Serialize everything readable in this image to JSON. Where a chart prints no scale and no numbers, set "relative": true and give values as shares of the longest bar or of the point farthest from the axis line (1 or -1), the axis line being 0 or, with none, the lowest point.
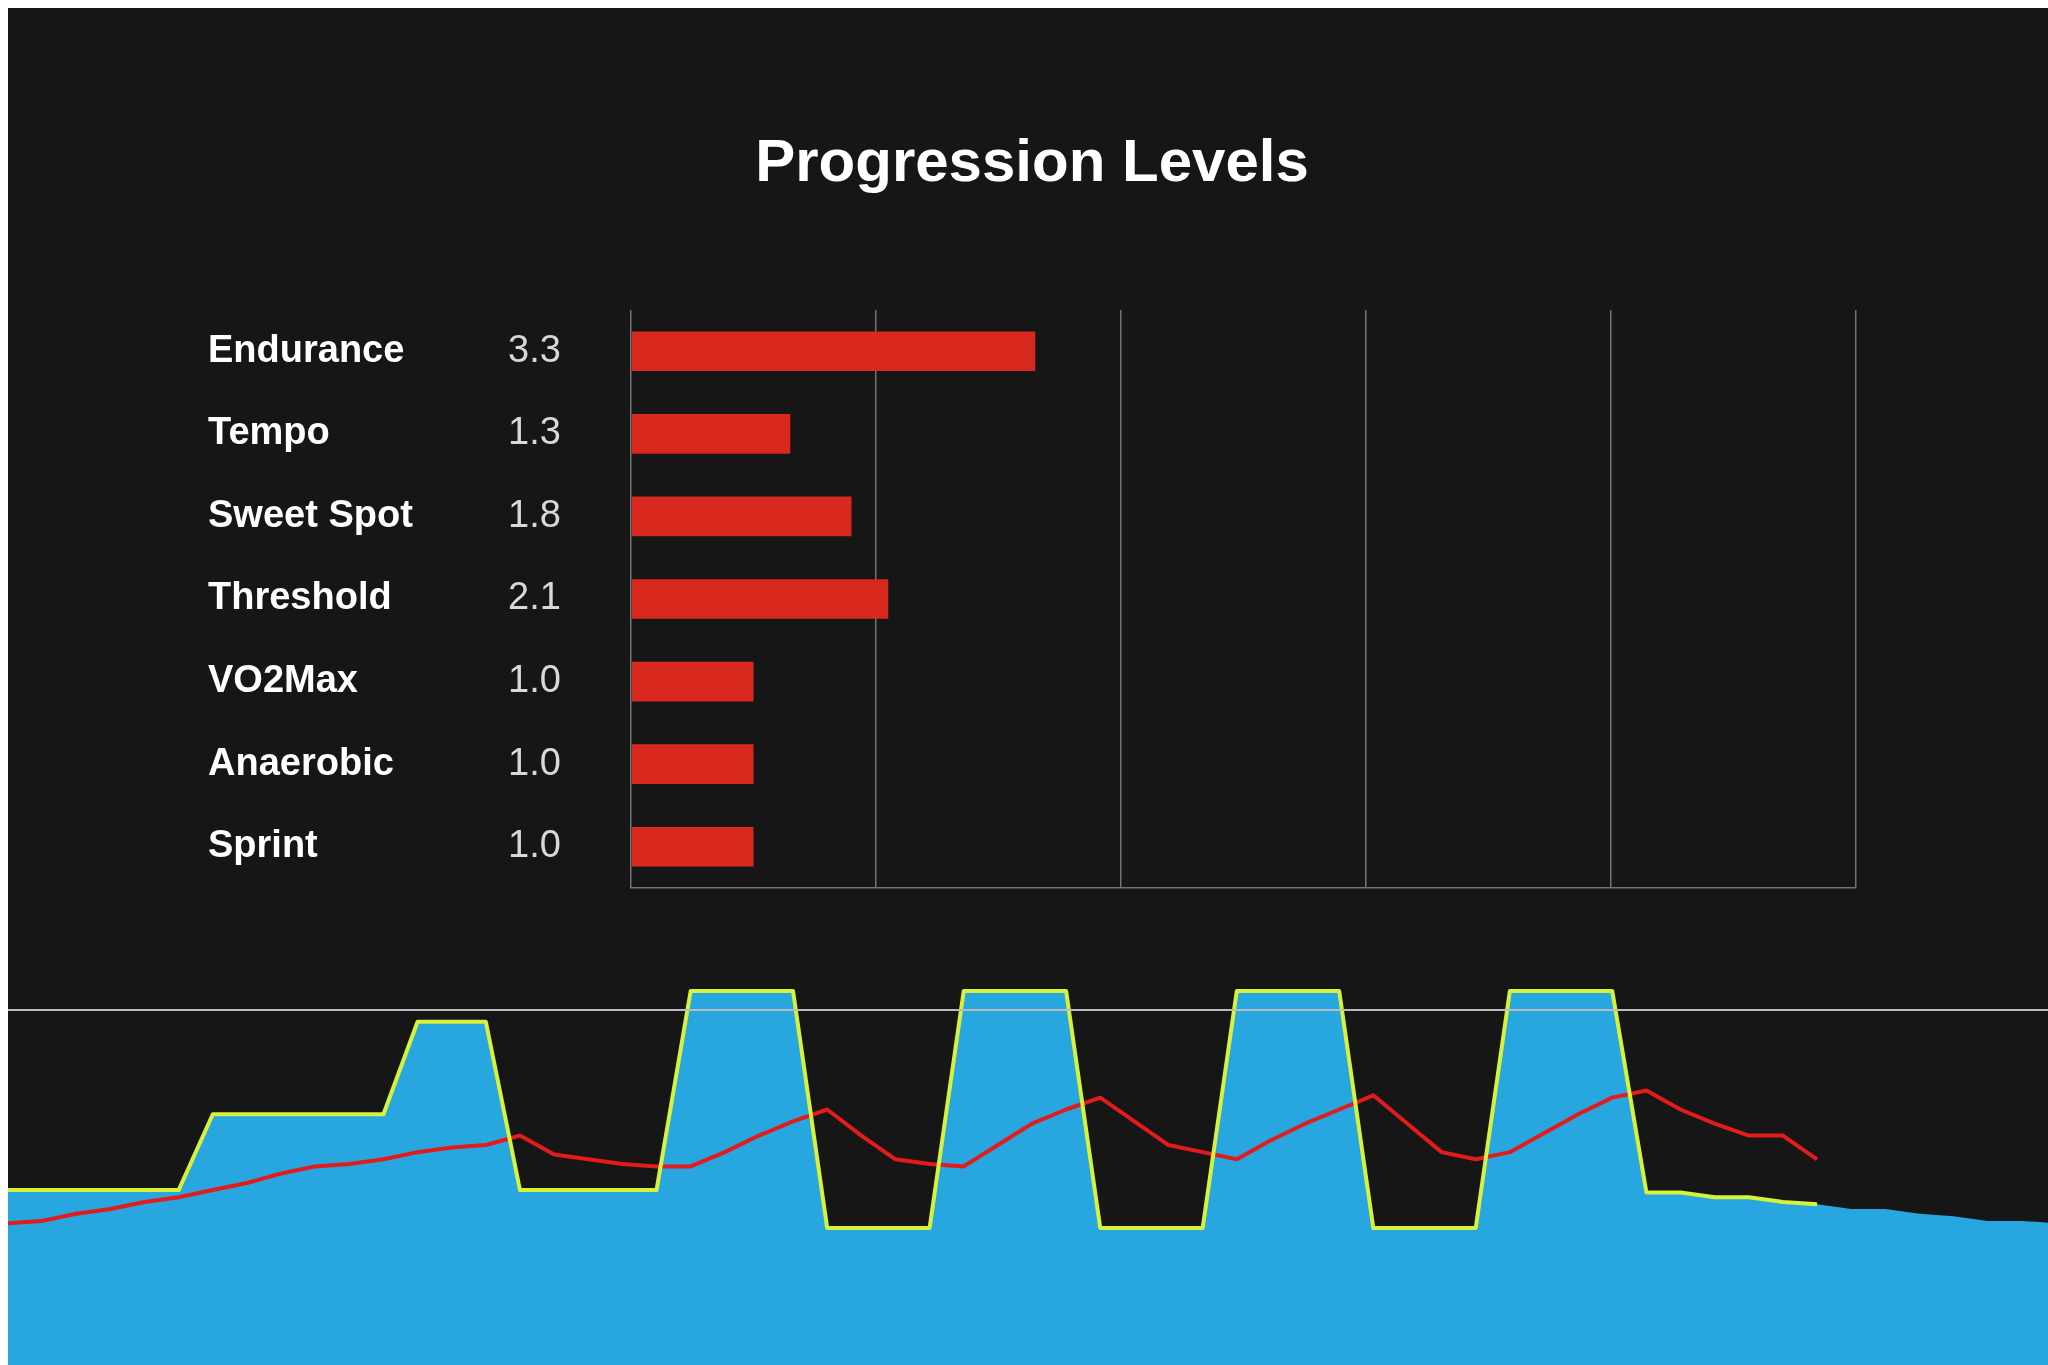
{
  "chart_data": [
    {
      "type": "bar",
      "orientation": "horizontal",
      "title": "Progression Levels",
      "categories": [
        "Endurance",
        "Tempo",
        "Sweet Spot",
        "Threshold",
        "VO2Max",
        "Anaerobic",
        "Sprint"
      ],
      "values": [
        3.3,
        1.3,
        1.8,
        2.1,
        1.0,
        1.0,
        1.0
      ],
      "value_labels": [
        "3.3",
        "1.3",
        "1.8",
        "2.1",
        "1.0",
        "1.0",
        "1.0"
      ],
      "color": "#d9291f",
      "xlim": [
        0,
        10
      ],
      "grid": "x",
      "tick_labels": "y",
      "legend": false
    },
    {
      "type": "area",
      "relative": true,
      "tick_labels": false,
      "legend": false,
      "categories": [
        null,
        null,
        null,
        null,
        null,
        null,
        null,
        null,
        null,
        null,
        null,
        null,
        null,
        null,
        null,
        null,
        null,
        null,
        null,
        null,
        null,
        null,
        null,
        null,
        null,
        null,
        null,
        null,
        null,
        null,
        null,
        null,
        null,
        null,
        null,
        null,
        null,
        null,
        null,
        null,
        null,
        null,
        null,
        null,
        null,
        null,
        null,
        null,
        null,
        null,
        null,
        null,
        null,
        null,
        null,
        null,
        null,
        null,
        null,
        null,
        null
      ],
      "series": [
        {
          "type": "area",
          "color": "#27a6df",
          "values": [
            0.16,
            0.16,
            0.16,
            0.16,
            0.16,
            0.16,
            0.48,
            0.48,
            0.48,
            0.48,
            0.48,
            0.48,
            0.87,
            0.87,
            0.87,
            0.16,
            0.16,
            0.16,
            0.16,
            0.16,
            1.0,
            1.0,
            1.0,
            1.0,
            0,
            0,
            0,
            0,
            1.0,
            1.0,
            1.0,
            1.0,
            0,
            0,
            0,
            0,
            1.0,
            1.0,
            1.0,
            1.0,
            0,
            0,
            0,
            0,
            1.0,
            1.0,
            1.0,
            1.0,
            0.15,
            0.15,
            0.13,
            0.13,
            0.11,
            0.1,
            0.08,
            0.08,
            0.06,
            0.05,
            0.03,
            0.03,
            0.02
          ]
        },
        {
          "type": "line",
          "color": "#d7f23a",
          "values": [
            0.16,
            0.16,
            0.16,
            0.16,
            0.16,
            0.16,
            0.48,
            0.48,
            0.48,
            0.48,
            0.48,
            0.48,
            0.87,
            0.87,
            0.87,
            0.16,
            0.16,
            0.16,
            0.16,
            0.16,
            1.0,
            1.0,
            1.0,
            1.0,
            0,
            0,
            0,
            0,
            1.0,
            1.0,
            1.0,
            1.0,
            0,
            0,
            0,
            0,
            1.0,
            1.0,
            1.0,
            1.0,
            0,
            0,
            0,
            0,
            1.0,
            1.0,
            1.0,
            1.0,
            0.15,
            0.15,
            0.13,
            0.13,
            0.11,
            0.1,
            null,
            null,
            null,
            null,
            null,
            null,
            null
          ]
        },
        {
          "type": "line",
          "color": "#e31b1b",
          "values": [
            0.02,
            0.03,
            0.06,
            0.08,
            0.11,
            0.13,
            0.16,
            0.19,
            0.23,
            0.26,
            0.27,
            0.29,
            0.32,
            0.34,
            0.35,
            0.39,
            0.31,
            0.29,
            0.27,
            0.26,
            0.26,
            0.32,
            0.39,
            0.45,
            0.5,
            0.39,
            0.29,
            0.27,
            0.26,
            0.35,
            0.44,
            0.5,
            0.55,
            0.45,
            0.35,
            0.32,
            0.29,
            0.37,
            0.44,
            0.5,
            0.56,
            0.44,
            0.32,
            0.29,
            0.32,
            0.4,
            0.48,
            0.55,
            0.58,
            0.5,
            0.44,
            0.39,
            0.39,
            0.29,
            null,
            null,
            null,
            null,
            null,
            null,
            null
          ]
        }
      ],
      "ref_lines": [
        {
          "axis": "y",
          "value": 0.92,
          "color": "#bbbbbb"
        }
      ]
    }
  ]
}
